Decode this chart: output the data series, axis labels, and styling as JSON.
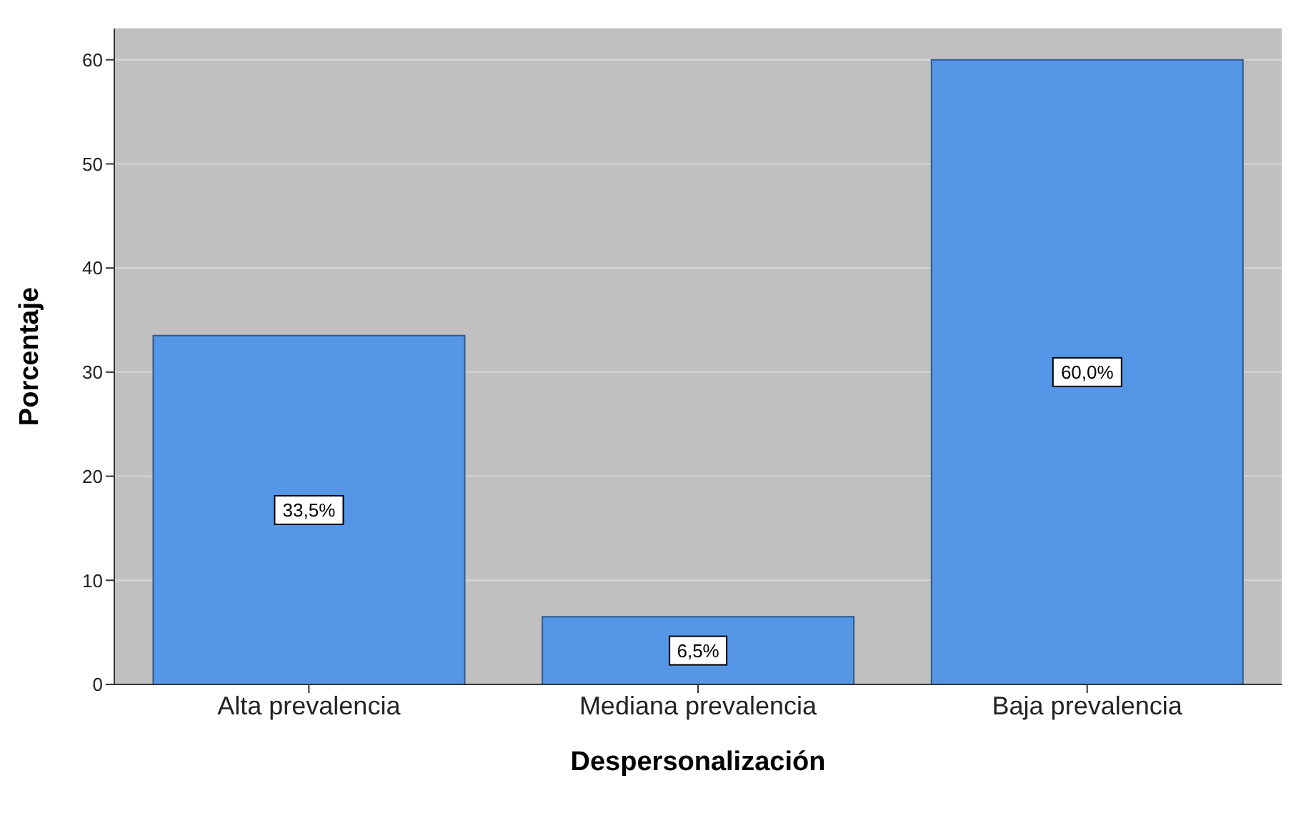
{
  "chart_data": {
    "type": "bar",
    "xlabel": "Despersonalización",
    "ylabel": "Porcentaje",
    "categories": [
      "Alta prevalencia",
      "Mediana prevalencia",
      "Baja prevalencia"
    ],
    "values": [
      33.5,
      6.5,
      60.0
    ],
    "value_labels": [
      "33,5%",
      "6,5%",
      "60,0%"
    ],
    "color": "#5596e6",
    "ylim": [
      0,
      63
    ],
    "yticks": [
      0,
      10,
      20,
      30,
      40,
      50,
      60
    ],
    "grid": "y"
  }
}
